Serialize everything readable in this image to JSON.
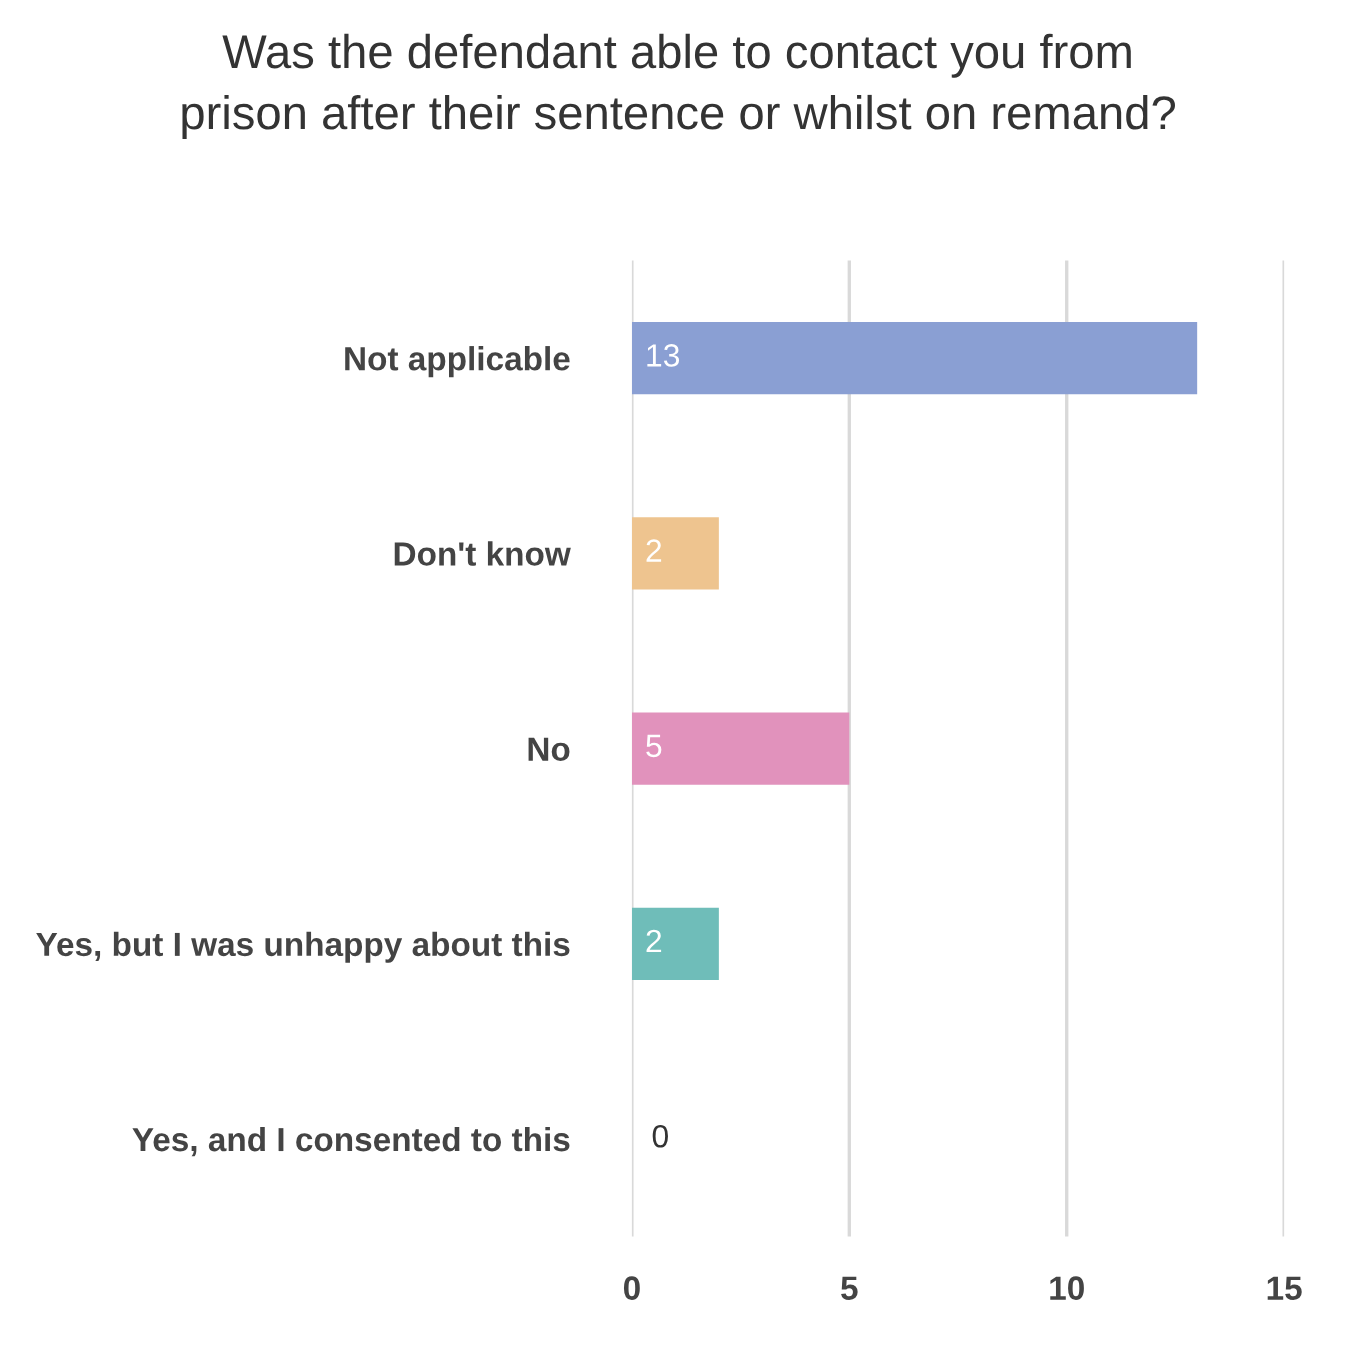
{
  "chart_data": {
    "type": "bar",
    "orientation": "horizontal",
    "title": "Was the defendant able to contact you from\nprison after their sentence or whilst on remand?",
    "categories": [
      "Not applicable",
      "Don't know",
      "No",
      "Yes, but I was unhappy about this",
      "Yes, and I consented to this"
    ],
    "values": [
      13,
      2,
      5,
      2,
      0
    ],
    "colors": [
      "#8a9fd3",
      "#eec48f",
      "#e192bc",
      "#6fbdb9",
      "#cccccc"
    ],
    "xlim": [
      0,
      15
    ],
    "xticks": [
      0,
      5,
      10,
      15
    ],
    "grid": "x",
    "data_labels": true
  }
}
